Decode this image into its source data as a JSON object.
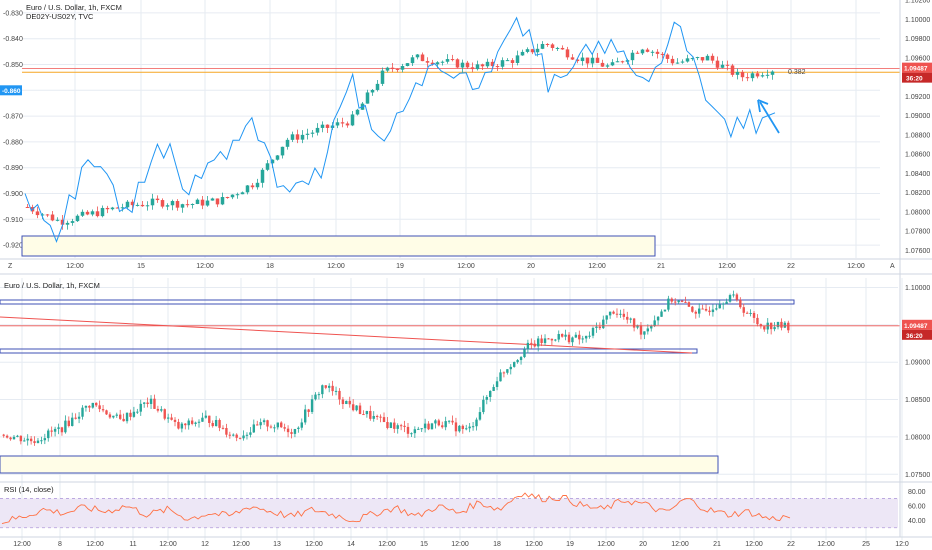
{
  "colors": {
    "up": "#26a69a",
    "down": "#ef5350",
    "spread_line": "#2196f3",
    "grid": "#e6ebf2",
    "orange_level": "#f5a623",
    "red_level": "#ef5350",
    "box_stroke": "#3f51b5",
    "box_fill": "#fffde7",
    "rsi_band": "#ede7f6",
    "rsi_line": "#ff7043"
  },
  "top_panel": {
    "title_line1": "Euro / U.S. Dollar, 1h, FXCM",
    "title_line2": "DE02Y-US02Y, TVC",
    "left_axis_ticks": [
      "-0.830",
      "-0.840",
      "-0.850",
      "-0.870",
      "-0.880",
      "-0.890",
      "-0.900",
      "-0.910",
      "-0.920"
    ],
    "left_axis_highlight": "-0.860",
    "right_axis_ticks": [
      "1.10200",
      "1.10000",
      "1.09800",
      "1.09600",
      "1.09200",
      "1.09000",
      "1.08800",
      "1.08600",
      "1.08400",
      "1.08200",
      "1.08000",
      "1.07800",
      "1.07600"
    ],
    "price_tag": "1.09487",
    "countdown_tag": "36:20",
    "level_label": "0.382",
    "time_labels": [
      "12:00",
      "15",
      "12:00",
      "18",
      "12:00",
      "19",
      "12:00",
      "20",
      "12:00",
      "21",
      "12:00",
      "22",
      "12:00"
    ],
    "axis_corner_left": "Z",
    "axis_corner_right": "A"
  },
  "middle_panel": {
    "title": "Euro / U.S. Dollar, 1h, FXCM",
    "right_axis_ticks": [
      "1.10000",
      "1.09500",
      "1.09000",
      "1.08500",
      "1.08000",
      "1.07500"
    ],
    "price_tag": "1.09487",
    "countdown_tag": "36:20"
  },
  "rsi_panel": {
    "title": "RSI (14, close)",
    "right_axis_ticks": [
      "80.00",
      "60.00",
      "40.00"
    ]
  },
  "bottom_axis": {
    "labels": [
      "12:00",
      "8",
      "12:00",
      "11",
      "12:00",
      "12",
      "12:00",
      "13",
      "12:00",
      "14",
      "12:00",
      "15",
      "12:00",
      "18",
      "12:00",
      "19",
      "12:00",
      "20",
      "12:00",
      "21",
      "12:00",
      "22",
      "12:00",
      "25",
      "12:0"
    ]
  },
  "chart_data": [
    {
      "type": "candlestick",
      "title": "Euro / U.S. Dollar, 1h, FXCM",
      "overlay_series": {
        "name": "DE02Y-US02Y, TVC",
        "type": "line"
      },
      "x": [
        "14 12:00",
        "15",
        "15 12:00",
        "18",
        "18 12:00",
        "19",
        "19 12:00",
        "20",
        "20 12:00",
        "21",
        "21 12:00",
        "22",
        "22 12:00"
      ],
      "price_close_path": [
        1.0805,
        1.079,
        1.0798,
        1.0806,
        1.081,
        1.0808,
        1.0812,
        1.083,
        1.0875,
        1.0885,
        1.0895,
        1.0945,
        1.096,
        1.0955,
        1.095,
        1.0958,
        1.0975,
        1.096,
        1.095,
        1.0972,
        1.0955,
        1.096,
        1.094,
        1.0948
      ],
      "spread_path": [
        -0.9,
        -0.918,
        -0.88,
        -0.91,
        -0.88,
        -0.895,
        -0.885,
        -0.87,
        -0.9,
        -0.895,
        -0.855,
        -0.88,
        -0.86,
        -0.85,
        -0.86,
        -0.83,
        -0.855,
        -0.85,
        -0.84,
        -0.86,
        -0.835,
        -0.868,
        -0.875,
        -0.868
      ],
      "price_ylim": [
        1.0752,
        1.102
      ],
      "spread_ylim": [
        -0.925,
        -0.825
      ],
      "last_price": 1.09487,
      "levels": [
        {
          "label": "0.382",
          "value": -0.853
        }
      ]
    },
    {
      "type": "candlestick",
      "title": "Euro / U.S. Dollar, 1h, FXCM",
      "x": [
        "7 12:00",
        "8",
        "8 12:00",
        "11",
        "11 12:00",
        "12",
        "12 12:00",
        "13",
        "13 12:00",
        "14",
        "14 12:00",
        "15",
        "15 12:00",
        "18",
        "18 12:00",
        "19",
        "19 12:00",
        "20",
        "20 12:00",
        "21",
        "21 12:00",
        "22"
      ],
      "price_close_path": [
        1.0803,
        1.0795,
        1.0812,
        1.0845,
        1.0822,
        1.0848,
        1.0812,
        1.0825,
        1.08,
        1.0818,
        1.0808,
        1.087,
        1.084,
        1.082,
        1.0808,
        1.082,
        1.0808,
        1.088,
        1.092,
        1.0935,
        1.093,
        1.097,
        1.094,
        1.0985,
        1.0965,
        1.099,
        1.095,
        1.0948
      ],
      "ylim": [
        1.0745,
        1.101
      ],
      "last_price": 1.09487
    },
    {
      "type": "line",
      "title": "RSI (14, close)",
      "values": [
        38,
        45,
        55,
        50,
        58,
        52,
        60,
        48,
        55,
        42,
        50,
        46,
        60,
        52,
        45,
        55,
        48,
        40,
        50,
        58,
        45,
        60,
        50,
        65,
        55,
        78,
        70,
        72,
        60,
        55,
        68,
        62,
        50,
        70,
        55,
        48,
        52,
        42,
        45
      ],
      "ylim": [
        20,
        90
      ],
      "bands": [
        70,
        30
      ]
    }
  ]
}
